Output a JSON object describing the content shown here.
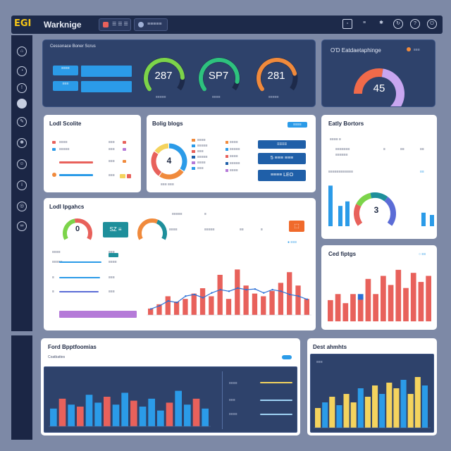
{
  "header": {
    "logo": "EGI",
    "title": "Warknige",
    "btn1": "☰ ☰ ☰",
    "btn2": "≡≡≡≡≡"
  },
  "colors": {
    "navy": "#1d2a4a",
    "panel": "#2e426b",
    "blue": "#2b9be8",
    "red": "#e8615b",
    "green": "#7cd44a",
    "orange": "#f08a3c",
    "purple": "#b57ad8",
    "yellow": "#f4d35e",
    "teal": "#1e8f9b"
  },
  "kpi_panel": {
    "title": "Cessonace Boner Scrus",
    "btn1": "≡≡≡≡",
    "btn2": "≡≡≡",
    "gauges": [
      {
        "value": "287",
        "label": "≡≡≡≡≡",
        "fraction": 0.85,
        "color": "#7cd44a"
      },
      {
        "value": "SP7",
        "label": "≡≡≡≡",
        "fraction": 0.9,
        "color": "#2ec27e"
      },
      {
        "value": "281",
        "label": "≡≡≡≡≡",
        "fraction": 0.8,
        "color": "#f08a3c"
      }
    ]
  },
  "score_panel": {
    "title": "O'D Eatdaetaphinge",
    "legend": "≡≡≡",
    "value": "45",
    "fraction": 0.55
  },
  "lead_panel": {
    "title": "Lodl Scolite",
    "rows": [
      {
        "left": "≡≡≡≡",
        "right": "≡≡≡"
      },
      {
        "left": "≡≡≡≡≡",
        "right": "≡≡≡"
      },
      {
        "left": "",
        "right": "≡≡≡"
      },
      {
        "left": "",
        "right": "≡≡≡"
      }
    ]
  },
  "donut_panel": {
    "title": "Bolig blogs",
    "value": "4",
    "caption": "≡≡≡ ≡≡≡",
    "list": [
      "≡≡≡≡",
      "≡≡≡≡≡",
      "≡≡≡",
      "≡≡≡≡≡",
      "≡≡≡≡",
      "≡≡≡"
    ],
    "list2": [
      "≡≡≡≡",
      "≡≡≡≡≡",
      "≡≡≡≡",
      "≡≡≡≡≡",
      "≡≡≡≡"
    ],
    "btn1": "≡≡≡≡",
    "btn2": "5 ≡≡≡ ≡≡≡",
    "btn3": "≡≡≡≡ LEO"
  },
  "entry_panel": {
    "title": "Eatly Bortors",
    "value": "3",
    "bars": [
      0.9,
      0.45,
      0.55,
      0.3,
      0.25
    ],
    "segments": [
      0.25,
      0.2,
      0.2,
      0.35
    ]
  },
  "mid_panel": {
    "title": "Lodl Ipgahcs",
    "gauge1": "0",
    "badge": "SZ ≡",
    "gauge2": "",
    "cols": [
      "≡≡≡≡≡",
      "≡",
      "≡≡≡≡",
      "≡≡"
    ],
    "row_labels": [
      "≡≡≡≡",
      "≡≡≡≡≡",
      "≡",
      "≡"
    ],
    "right_labels": [
      "≡≡≡",
      "≡≡≡≡",
      "≡≡≡",
      "≡≡≡"
    ],
    "bars": [
      0.12,
      0.2,
      0.35,
      0.25,
      0.3,
      0.4,
      0.5,
      0.35,
      0.75,
      0.3,
      0.85,
      0.55,
      0.4,
      0.35,
      0.45,
      0.6,
      0.8,
      0.55,
      0.3
    ],
    "line": [
      0.1,
      0.2,
      0.35,
      0.3,
      0.5,
      0.55,
      0.45,
      0.6,
      0.7,
      0.65,
      0.75,
      0.7,
      0.72,
      0.6,
      0.7,
      0.65,
      0.55,
      0.5,
      0.4
    ]
  },
  "lower_right_panel": {
    "title": "Ced fiptgs",
    "bars": [
      0.35,
      0.45,
      0.3,
      0.45,
      0.4,
      0.7,
      0.45,
      0.75,
      0.6,
      0.85,
      0.55,
      0.8,
      0.65,
      0.75
    ]
  },
  "bottom_left_panel": {
    "title": "Ford Bpptfoomias",
    "subtitle": "Coatbattes",
    "legend_labels": [
      "≡≡≡≡",
      "≡≡≡",
      "≡≡≡≡"
    ],
    "bars": [
      0.45,
      0.7,
      0.55,
      0.5,
      0.8,
      0.6,
      0.75,
      0.55,
      0.85,
      0.65,
      0.5,
      0.7,
      0.4,
      0.6,
      0.9,
      0.55,
      0.7,
      0.45
    ],
    "bar_colors": [
      "#2b9be8",
      "#e8615b",
      "#2b9be8",
      "#e8615b",
      "#2b9be8",
      "#2b9be8",
      "#e8615b",
      "#2b9be8",
      "#2b9be8",
      "#e8615b",
      "#2b9be8",
      "#2b9be8",
      "#2b9be8",
      "#e8615b",
      "#2b9be8",
      "#2b9be8",
      "#e8615b",
      "#2b9be8"
    ]
  },
  "bottom_right_panel": {
    "title": "Dest ahmhts",
    "subtitle": "≡≡≡",
    "bars": [
      0.35,
      0.45,
      0.55,
      0.4,
      0.6,
      0.45,
      0.7,
      0.55,
      0.75,
      0.6,
      0.8,
      0.7,
      0.85,
      0.6,
      0.9,
      0.75
    ],
    "bar_colors": [
      "#f4d35e",
      "#2b9be8",
      "#f4d35e",
      "#2b9be8",
      "#f4d35e",
      "#f4d35e",
      "#2b9be8",
      "#f4d35e",
      "#f4d35e",
      "#2b9be8",
      "#f4d35e",
      "#f4d35e",
      "#2b9be8",
      "#f4d35e",
      "#f4d35e",
      "#2b9be8"
    ]
  }
}
